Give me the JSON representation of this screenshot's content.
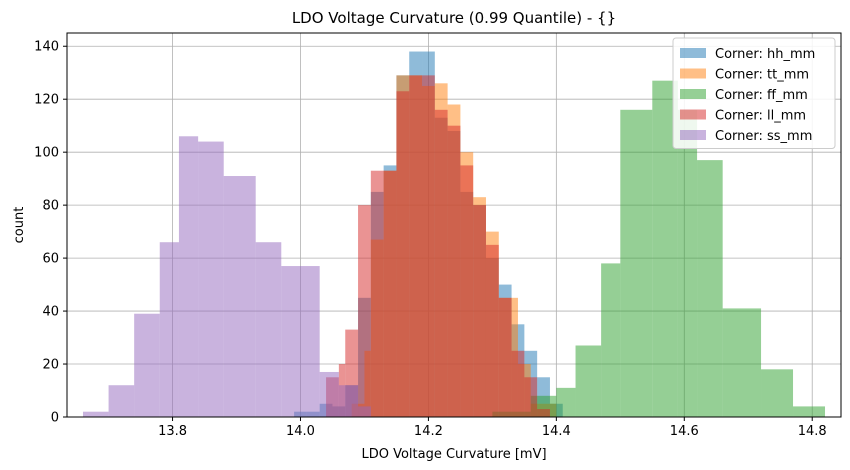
{
  "chart_data": {
    "type": "bar",
    "subtype": "histogram-overlay",
    "title": "LDO Voltage Curvature (0.99 Quantile) - {}",
    "xlabel": "LDO Voltage Curvature [mV]",
    "ylabel": "count",
    "xlim": [
      13.635,
      14.845
    ],
    "ylim": [
      0,
      145
    ],
    "xticks": [
      13.8,
      14.0,
      14.2,
      14.4,
      14.6,
      14.8
    ],
    "xtick_labels": [
      "13.8",
      "14.0",
      "14.2",
      "14.4",
      "14.6",
      "14.8"
    ],
    "yticks": [
      0,
      20,
      40,
      60,
      80,
      100,
      120,
      140
    ],
    "ytick_labels": [
      "0",
      "20",
      "40",
      "60",
      "80",
      "100",
      "120",
      "140"
    ],
    "grid": true,
    "legend_position": "top-right",
    "bar_alpha": 0.5,
    "series": [
      {
        "name": "Corner: hh_mm",
        "color": "#1f77b4",
        "bins": [
          [
            13.99,
            14.01,
            2
          ],
          [
            14.01,
            14.03,
            2
          ],
          [
            14.03,
            14.05,
            5
          ],
          [
            14.05,
            14.07,
            4
          ],
          [
            14.07,
            14.09,
            12
          ],
          [
            14.09,
            14.11,
            45
          ],
          [
            14.11,
            14.13,
            85
          ],
          [
            14.13,
            14.15,
            95
          ],
          [
            14.15,
            14.17,
            129
          ],
          [
            14.17,
            14.19,
            138
          ],
          [
            14.19,
            14.21,
            138
          ],
          [
            14.21,
            14.23,
            113
          ],
          [
            14.23,
            14.25,
            108
          ],
          [
            14.25,
            14.27,
            85
          ],
          [
            14.27,
            14.29,
            80
          ],
          [
            14.29,
            14.31,
            60
          ],
          [
            14.31,
            14.33,
            50
          ],
          [
            14.33,
            14.35,
            35
          ],
          [
            14.35,
            14.37,
            25
          ],
          [
            14.37,
            14.39,
            15
          ],
          [
            14.39,
            14.41,
            5
          ]
        ]
      },
      {
        "name": "Corner: tt_mm",
        "color": "#ff7f0e",
        "bins": [
          [
            14.08,
            14.1,
            5
          ],
          [
            14.1,
            14.11,
            25
          ],
          [
            14.11,
            14.13,
            67
          ],
          [
            14.13,
            14.15,
            93
          ],
          [
            14.15,
            14.17,
            129
          ],
          [
            14.17,
            14.19,
            129
          ],
          [
            14.19,
            14.21,
            125
          ],
          [
            14.21,
            14.23,
            126
          ],
          [
            14.23,
            14.25,
            118
          ],
          [
            14.25,
            14.27,
            100
          ],
          [
            14.27,
            14.29,
            83
          ],
          [
            14.29,
            14.31,
            70
          ],
          [
            14.31,
            14.34,
            45
          ],
          [
            14.34,
            14.36,
            20
          ],
          [
            14.36,
            14.38,
            5
          ],
          [
            14.38,
            14.4,
            5
          ]
        ]
      },
      {
        "name": "Corner: ff_mm",
        "color": "#2ca02c",
        "bins": [
          [
            14.3,
            14.36,
            2
          ],
          [
            14.36,
            14.4,
            8
          ],
          [
            14.4,
            14.43,
            11
          ],
          [
            14.43,
            14.47,
            27
          ],
          [
            14.47,
            14.5,
            58
          ],
          [
            14.5,
            14.55,
            116
          ],
          [
            14.55,
            14.59,
            127
          ],
          [
            14.59,
            14.62,
            116
          ],
          [
            14.62,
            14.66,
            97
          ],
          [
            14.66,
            14.72,
            41
          ],
          [
            14.72,
            14.77,
            18
          ],
          [
            14.77,
            14.82,
            4
          ]
        ]
      },
      {
        "name": "Corner: ll_mm",
        "color": "#d62728",
        "bins": [
          [
            14.04,
            14.06,
            15
          ],
          [
            14.06,
            14.07,
            20
          ],
          [
            14.07,
            14.09,
            33
          ],
          [
            14.09,
            14.11,
            80
          ],
          [
            14.11,
            14.13,
            93
          ],
          [
            14.13,
            14.15,
            93
          ],
          [
            14.15,
            14.17,
            123
          ],
          [
            14.17,
            14.19,
            129
          ],
          [
            14.19,
            14.21,
            129
          ],
          [
            14.21,
            14.23,
            116
          ],
          [
            14.23,
            14.25,
            110
          ],
          [
            14.25,
            14.27,
            95
          ],
          [
            14.27,
            14.29,
            80
          ],
          [
            14.29,
            14.31,
            65
          ],
          [
            14.31,
            14.33,
            45
          ],
          [
            14.33,
            14.35,
            25
          ],
          [
            14.35,
            14.37,
            15
          ],
          [
            14.37,
            14.39,
            3
          ]
        ]
      },
      {
        "name": "Corner: ss_mm",
        "color": "#9467bd",
        "bins": [
          [
            13.66,
            13.7,
            2
          ],
          [
            13.7,
            13.74,
            12
          ],
          [
            13.74,
            13.78,
            39
          ],
          [
            13.78,
            13.81,
            66
          ],
          [
            13.81,
            13.84,
            106
          ],
          [
            13.84,
            13.88,
            104
          ],
          [
            13.88,
            13.93,
            91
          ],
          [
            13.93,
            13.97,
            66
          ],
          [
            13.97,
            14.03,
            57
          ],
          [
            14.03,
            14.06,
            17
          ],
          [
            14.06,
            14.09,
            12
          ],
          [
            14.09,
            14.11,
            4
          ]
        ]
      }
    ]
  }
}
